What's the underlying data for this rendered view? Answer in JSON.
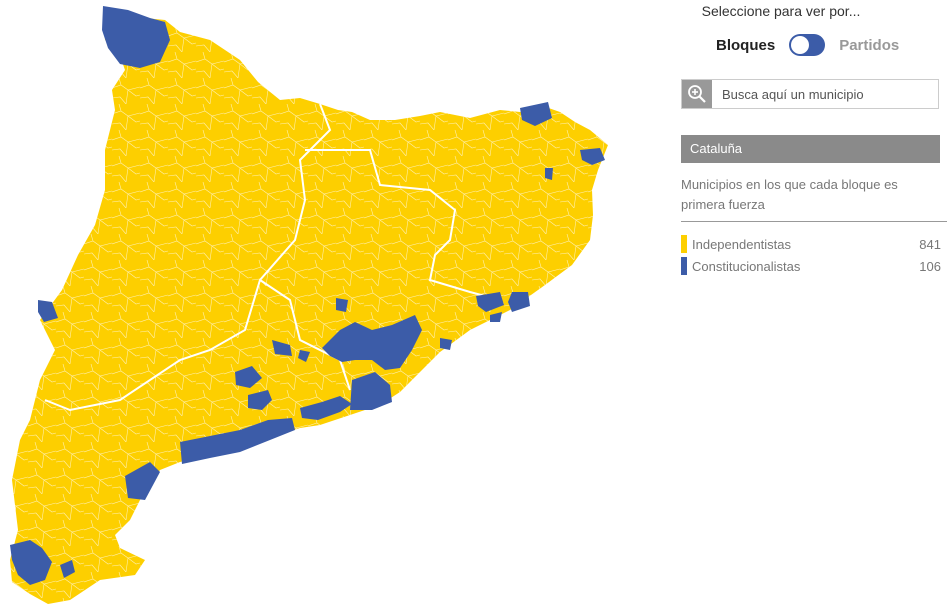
{
  "header": {
    "prompt": "Seleccione para ver por...",
    "toggle_left": "Bloques",
    "toggle_right": "Partidos"
  },
  "search": {
    "placeholder": "Busca aquí un municipio",
    "icon": "magnifier-plus-icon"
  },
  "region": {
    "name": "Cataluña"
  },
  "description": "Municipios en los que cada bloque es primera fuerza",
  "legend": [
    {
      "label": "Independentistas",
      "count": "841",
      "color": "#fdcf00"
    },
    {
      "label": "Constitucionalistas",
      "count": "106",
      "color": "#3c5ca8"
    }
  ],
  "colors": {
    "independentistas": "#fdcf00",
    "constitucionalistas": "#3c5ca8",
    "boundary": "#ffffff"
  }
}
